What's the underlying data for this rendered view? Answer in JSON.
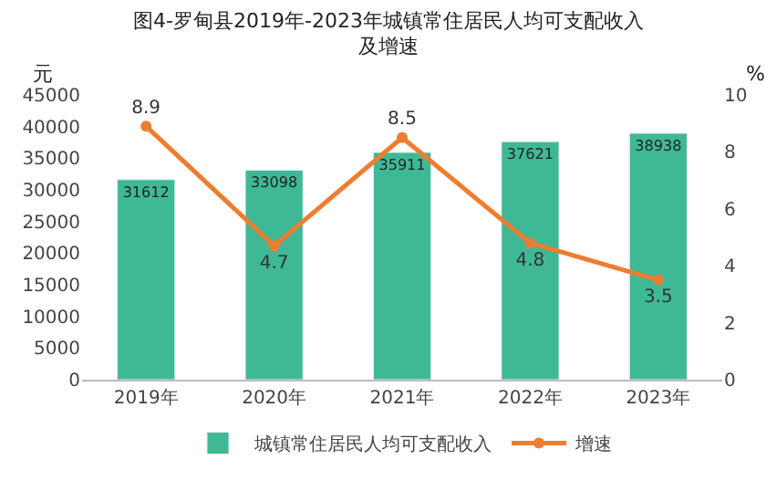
{
  "chart_data": {
    "type": "bar",
    "title": "图4-罗甸县2019年-2023年城镇常住居民人均可支配收入及增速",
    "ylabel": "元",
    "y2label": "%",
    "categories": [
      "2019年",
      "2020年",
      "2021年",
      "2022年",
      "2023年"
    ],
    "series": [
      {
        "name": "城镇常住居民人均可支配收入",
        "color": "#3fb896",
        "values": [
          31612,
          33098,
          35911,
          37621,
          38938
        ]
      },
      {
        "name": "增速",
        "type": "line",
        "axis": "y2",
        "color": "#ed7d31",
        "marker": "circle",
        "values": [
          8.9,
          4.7,
          8.5,
          4.8,
          3.5
        ]
      }
    ],
    "ylim": [
      0,
      45000
    ],
    "yticks": [
      0,
      5000,
      10000,
      15000,
      20000,
      25000,
      30000,
      35000,
      40000,
      45000
    ],
    "y2lim": [
      0,
      10
    ],
    "y2ticks": [
      0,
      2,
      4,
      6,
      8,
      10
    ],
    "data_labels": true,
    "grid": false,
    "legend": "bottom"
  }
}
